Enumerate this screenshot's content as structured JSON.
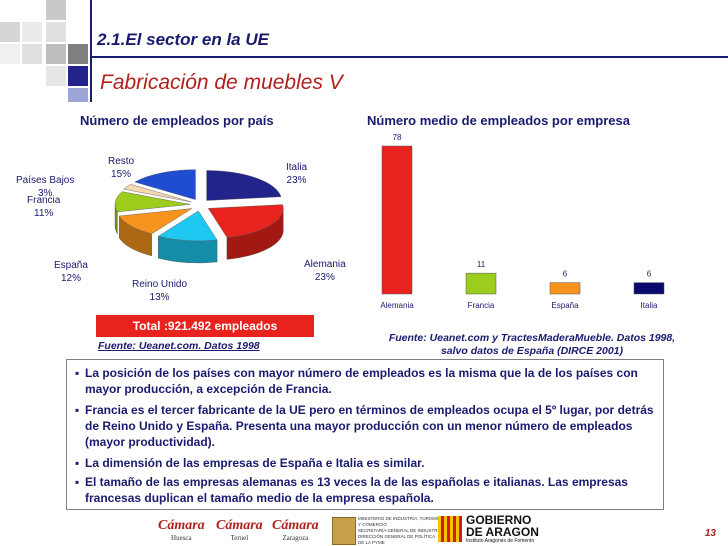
{
  "header": {
    "section_title": "2.1.El sector en la UE",
    "slide_title": "Fabricación de muebles V"
  },
  "pie": {
    "heading": "Número de empleados por país",
    "labels": [
      {
        "name": "Italia",
        "pct": "23%"
      },
      {
        "name": "Alemania",
        "pct": "23%"
      },
      {
        "name": "Reino Unido",
        "pct": "13%"
      },
      {
        "name": "España",
        "pct": "12%"
      },
      {
        "name": "Francia",
        "pct": "11%"
      },
      {
        "name": "Países Bajos",
        "pct": "3%"
      },
      {
        "name": "Resto",
        "pct": "15%"
      }
    ],
    "total": "Total :921.492 empleados",
    "source": "Fuente: Ueanet.com. Datos 1998"
  },
  "bar": {
    "heading": "Número medio de empleados por empresa",
    "source_line1": "Fuente: Ueanet.com y TractesMaderaMueble. Datos 1998,",
    "source_line2": "salvo datos de España (DIRCE 2001)"
  },
  "chart_data": [
    {
      "type": "pie",
      "title": "Número de empleados por país",
      "categories": [
        "Italia",
        "Alemania",
        "Reino Unido",
        "España",
        "Francia",
        "Países Bajos",
        "Resto"
      ],
      "values": [
        23,
        23,
        13,
        12,
        11,
        3,
        15
      ],
      "colors": [
        "#23238c",
        "#e8231d",
        "#1ec8f0",
        "#f7941d",
        "#9ccc1c",
        "#f5d7b0",
        "#1e4ecf"
      ]
    },
    {
      "type": "bar",
      "title": "Número medio de empleados por empresa",
      "categories": [
        "Alemania",
        "Francia",
        "España",
        "Italia"
      ],
      "values": [
        78,
        11,
        6,
        6
      ],
      "colors": [
        "#e8231d",
        "#9ccc1c",
        "#f7941d",
        "#0a0a6e"
      ],
      "ylim": [
        0,
        78
      ]
    }
  ],
  "bullets": [
    "La posición de los países con mayor número de empleados es la misma que la de los países con mayor producción, a excepción de Francia.",
    "Francia es el tercer fabricante de la UE pero en términos de empleados ocupa el 5º lugar, por detrás de Reino Unido y España. Presenta una mayor producción con un menor número de empleados (mayor productividad).",
    "La dimensión de las empresas de España e Italia es similar.",
    "El tamaño de las empresas alemanas es 13 veces la de las españolas e italianas. Las empresas francesas duplican el tamaño medio de la empresa española."
  ],
  "footer": {
    "logos": [
      {
        "name": "Cámara",
        "sub": "Huesca"
      },
      {
        "name": "Cámara",
        "sub": "Teruel"
      },
      {
        "name": "Cámara",
        "sub": "Zaragoza"
      }
    ],
    "ministry_lines": [
      "MINISTERIO DE INDUSTRIA, TURISMO Y COMERCIO",
      "SECRETARÍA GENERAL DE INDUSTRIA",
      "DIRECCIÓN GENERAL DE POLÍTICA DE LA PYME"
    ],
    "gob_line1": "GOBIERNO",
    "gob_line2": "DE ARAGON",
    "gob_sub": "Instituto Aragonés de Fomento",
    "page_number": "13"
  }
}
